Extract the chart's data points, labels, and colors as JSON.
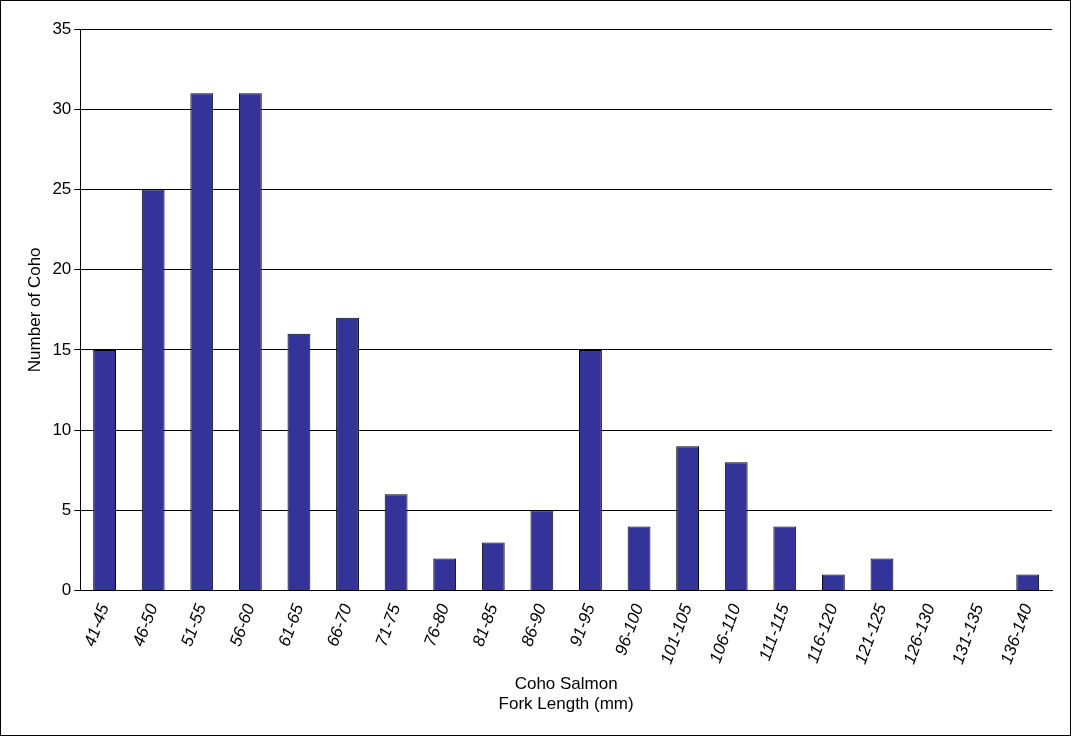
{
  "chart_data": {
    "type": "bar",
    "xlabel": "Coho Salmon\nFork Length (mm)",
    "ylabel": "Number of Coho",
    "categories": [
      "41-45",
      "46-50",
      "51-55",
      "56-60",
      "61-65",
      "66-70",
      "71-75",
      "76-80",
      "81-85",
      "86-90",
      "91-95",
      "96-100",
      "101-105",
      "106-110",
      "111-115",
      "116-120",
      "121-125",
      "126-130",
      "131-135",
      "136-140"
    ],
    "values": [
      15,
      25,
      31,
      31,
      16,
      17,
      6,
      2,
      3,
      5,
      15,
      4,
      9,
      8,
      4,
      1,
      2,
      0,
      0,
      1
    ],
    "color": "#333399",
    "ylim": [
      0,
      35
    ],
    "yticks": [
      0,
      5,
      10,
      15,
      20,
      25,
      30,
      35
    ],
    "grid": "y",
    "legend": false
  }
}
